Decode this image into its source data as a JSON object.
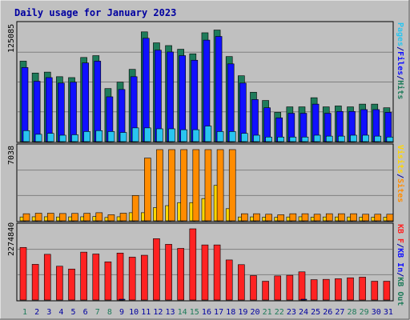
{
  "title": "Daily usage for January 2023",
  "colors": {
    "background": "#c0c0c0",
    "plot_bg": "#c0c0c0",
    "grid": "#808080",
    "hits": "#1e7b5a",
    "files": "#1010ff",
    "pages": "#29c5f0",
    "visits": "#ffd700",
    "sites": "#ff8c00",
    "kb_in": "#ff2222",
    "kb_out": "#1e7b5a",
    "title": "#0000a0",
    "weekend_day": "#1e7b5a",
    "weekday": "#0000a0"
  },
  "chart_data": [
    {
      "type": "bar",
      "title": "Daily usage for January 2023",
      "panel": "hits-files-pages",
      "y_max_label": "125085",
      "ylim": [
        0,
        125085
      ],
      "legend": [
        "Pages",
        "Files",
        "Hits"
      ],
      "categories": [
        "1",
        "2",
        "3",
        "4",
        "5",
        "6",
        "7",
        "8",
        "9",
        "10",
        "11",
        "12",
        "13",
        "14",
        "15",
        "16",
        "17",
        "18",
        "19",
        "20",
        "21",
        "22",
        "23",
        "24",
        "25",
        "26",
        "27",
        "28",
        "29",
        "30",
        "31"
      ],
      "series": [
        {
          "name": "Hits",
          "values": [
            88000,
            75000,
            76000,
            71000,
            70000,
            92000,
            94000,
            58000,
            65000,
            79000,
            120000,
            108000,
            105000,
            101000,
            96000,
            119000,
            122000,
            93000,
            72000,
            54000,
            45000,
            32000,
            38000,
            38000,
            48000,
            38000,
            39000,
            38000,
            41000,
            41000,
            37000
          ]
        },
        {
          "name": "Files",
          "values": [
            81000,
            66000,
            70000,
            64000,
            65000,
            86000,
            88000,
            49000,
            57000,
            71000,
            113000,
            100000,
            98000,
            94000,
            89000,
            111000,
            115000,
            85000,
            64000,
            46000,
            37000,
            26000,
            31000,
            31000,
            41000,
            31000,
            33000,
            33000,
            35000,
            35000,
            32000
          ]
        },
        {
          "name": "Pages",
          "values": [
            12000,
            8000,
            9000,
            7000,
            7500,
            11000,
            12000,
            11000,
            10000,
            15000,
            15000,
            14000,
            14000,
            13000,
            13000,
            17000,
            11000,
            11000,
            9000,
            7000,
            5000,
            5000,
            5000,
            5000,
            7000,
            6000,
            6000,
            7000,
            7000,
            6000,
            5000
          ]
        }
      ]
    },
    {
      "type": "bar",
      "panel": "sites-visits",
      "y_max_label": "7038",
      "ylim": [
        0,
        7038
      ],
      "legend": [
        "Visits",
        "Sites"
      ],
      "categories": [
        "1",
        "2",
        "3",
        "4",
        "5",
        "6",
        "7",
        "8",
        "9",
        "10",
        "11",
        "12",
        "13",
        "14",
        "15",
        "16",
        "17",
        "18",
        "19",
        "20",
        "21",
        "22",
        "23",
        "24",
        "25",
        "26",
        "27",
        "28",
        "29",
        "30",
        "31"
      ],
      "series": [
        {
          "name": "Sites",
          "values": [
            700,
            750,
            750,
            720,
            730,
            740,
            800,
            600,
            750,
            2500,
            6200,
            7038,
            7038,
            7038,
            7038,
            7038,
            7038,
            7038,
            700,
            700,
            650,
            600,
            700,
            700,
            650,
            700,
            700,
            700,
            650,
            650,
            650
          ]
        },
        {
          "name": "Visits",
          "values": [
            380,
            400,
            400,
            380,
            390,
            400,
            420,
            330,
            400,
            800,
            800,
            1300,
            1500,
            1800,
            1800,
            2200,
            3500,
            1200,
            380,
            390,
            360,
            340,
            380,
            400,
            360,
            380,
            380,
            380,
            360,
            360,
            360
          ]
        }
      ]
    },
    {
      "type": "bar",
      "panel": "kbytes",
      "y_max_label": "2274840",
      "ylim": [
        0,
        2274840
      ],
      "legend": [
        "KB F",
        "KB In",
        "KB Out"
      ],
      "categories": [
        "1",
        "2",
        "3",
        "4",
        "5",
        "6",
        "7",
        "8",
        "9",
        "10",
        "11",
        "12",
        "13",
        "14",
        "15",
        "16",
        "17",
        "18",
        "19",
        "20",
        "21",
        "22",
        "23",
        "24",
        "25",
        "26",
        "27",
        "28",
        "29",
        "30",
        "31"
      ],
      "series": [
        {
          "name": "KB F",
          "values": [
            1680000,
            1140000,
            1460000,
            1080000,
            990000,
            1530000,
            1470000,
            1220000,
            1500000,
            1370000,
            1430000,
            1960000,
            1780000,
            1650000,
            2274840,
            1760000,
            1760000,
            1280000,
            1130000,
            780000,
            600000,
            770000,
            790000,
            900000,
            650000,
            660000,
            680000,
            710000,
            730000,
            600000,
            600000
          ]
        },
        {
          "name": "KB In",
          "values": [
            0,
            0,
            0,
            0,
            0,
            0,
            0,
            0,
            25000,
            0,
            0,
            0,
            0,
            0,
            0,
            0,
            0,
            0,
            0,
            0,
            0,
            0,
            0,
            25000,
            0,
            0,
            0,
            0,
            0,
            0,
            0
          ]
        }
      ]
    }
  ],
  "x_labels": [
    {
      "label": "1",
      "weekend": true
    },
    {
      "label": "2",
      "weekend": false
    },
    {
      "label": "3",
      "weekend": false
    },
    {
      "label": "4",
      "weekend": false
    },
    {
      "label": "5",
      "weekend": false
    },
    {
      "label": "6",
      "weekend": false
    },
    {
      "label": "7",
      "weekend": true
    },
    {
      "label": "8",
      "weekend": true
    },
    {
      "label": "9",
      "weekend": false
    },
    {
      "label": "10",
      "weekend": false
    },
    {
      "label": "11",
      "weekend": false
    },
    {
      "label": "12",
      "weekend": false
    },
    {
      "label": "13",
      "weekend": false
    },
    {
      "label": "14",
      "weekend": true
    },
    {
      "label": "15",
      "weekend": true
    },
    {
      "label": "16",
      "weekend": false
    },
    {
      "label": "17",
      "weekend": false
    },
    {
      "label": "18",
      "weekend": false
    },
    {
      "label": "19",
      "weekend": false
    },
    {
      "label": "20",
      "weekend": false
    },
    {
      "label": "21",
      "weekend": true
    },
    {
      "label": "22",
      "weekend": true
    },
    {
      "label": "23",
      "weekend": false
    },
    {
      "label": "24",
      "weekend": false
    },
    {
      "label": "25",
      "weekend": false
    },
    {
      "label": "26",
      "weekend": false
    },
    {
      "label": "27",
      "weekend": false
    },
    {
      "label": "28",
      "weekend": true
    },
    {
      "label": "29",
      "weekend": true
    },
    {
      "label": "30",
      "weekend": false
    },
    {
      "label": "31",
      "weekend": false
    }
  ],
  "right_labels": {
    "panel1": [
      {
        "text": "Pages",
        "color": "#29c5f0"
      },
      {
        "text": "/",
        "color": "#0000a0"
      },
      {
        "text": "Files",
        "color": "#1010ff"
      },
      {
        "text": "/",
        "color": "#0000a0"
      },
      {
        "text": "Hits",
        "color": "#1e7b5a"
      }
    ],
    "panel2": [
      {
        "text": "Visits",
        "color": "#ffd700"
      },
      {
        "text": "/",
        "color": "#0000a0"
      },
      {
        "text": "Sites",
        "color": "#ff8c00"
      }
    ],
    "panel3": [
      {
        "text": "KB F",
        "color": "#ff2222"
      },
      {
        "text": "/",
        "color": "#0000a0"
      },
      {
        "text": "KB In",
        "color": "#1010ff"
      },
      {
        "text": "/",
        "color": "#0000a0"
      },
      {
        "text": "KB Out",
        "color": "#1e7b5a"
      }
    ]
  }
}
